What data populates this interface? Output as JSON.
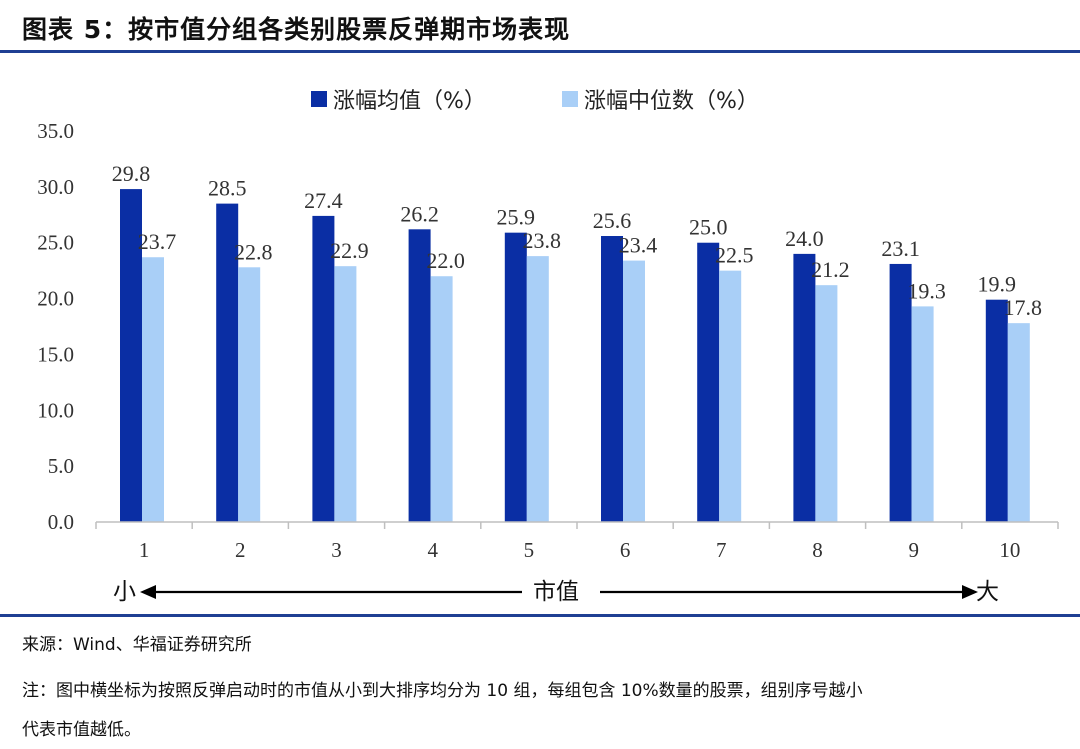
{
  "title": "图表 5：按市值分组各类别股票反弹期市场表现",
  "source": "来源：Wind、华福证券研究所",
  "note_line1": "注：图中横坐标为按照反弹启动时的市值从小到大排序均分为 10 组，每组包含 10%数量的股票，组别序号越小",
  "note_line2": "代表市值越低。",
  "colors": {
    "series1": "#0a2ea4",
    "series2": "#a9cff7",
    "rule": "#1f3f93"
  },
  "chart_data": {
    "type": "bar",
    "categories": [
      "1",
      "2",
      "3",
      "4",
      "5",
      "6",
      "7",
      "8",
      "9",
      "10"
    ],
    "series": [
      {
        "name": "涨幅均值（%）",
        "values": [
          29.8,
          28.5,
          27.4,
          26.2,
          25.9,
          25.6,
          25.0,
          24.0,
          23.1,
          19.9
        ]
      },
      {
        "name": "涨幅中位数（%）",
        "values": [
          23.7,
          22.8,
          22.9,
          22.0,
          23.8,
          23.4,
          22.5,
          21.2,
          19.3,
          17.8
        ]
      }
    ],
    "ylim": [
      0,
      35
    ],
    "yticks": [
      "0.0",
      "5.0",
      "10.0",
      "15.0",
      "20.0",
      "25.0",
      "30.0",
      "35.0"
    ],
    "legend": "top-center",
    "grid": false,
    "axis_caption": {
      "left": "小",
      "center": "市值",
      "right": "大"
    }
  }
}
